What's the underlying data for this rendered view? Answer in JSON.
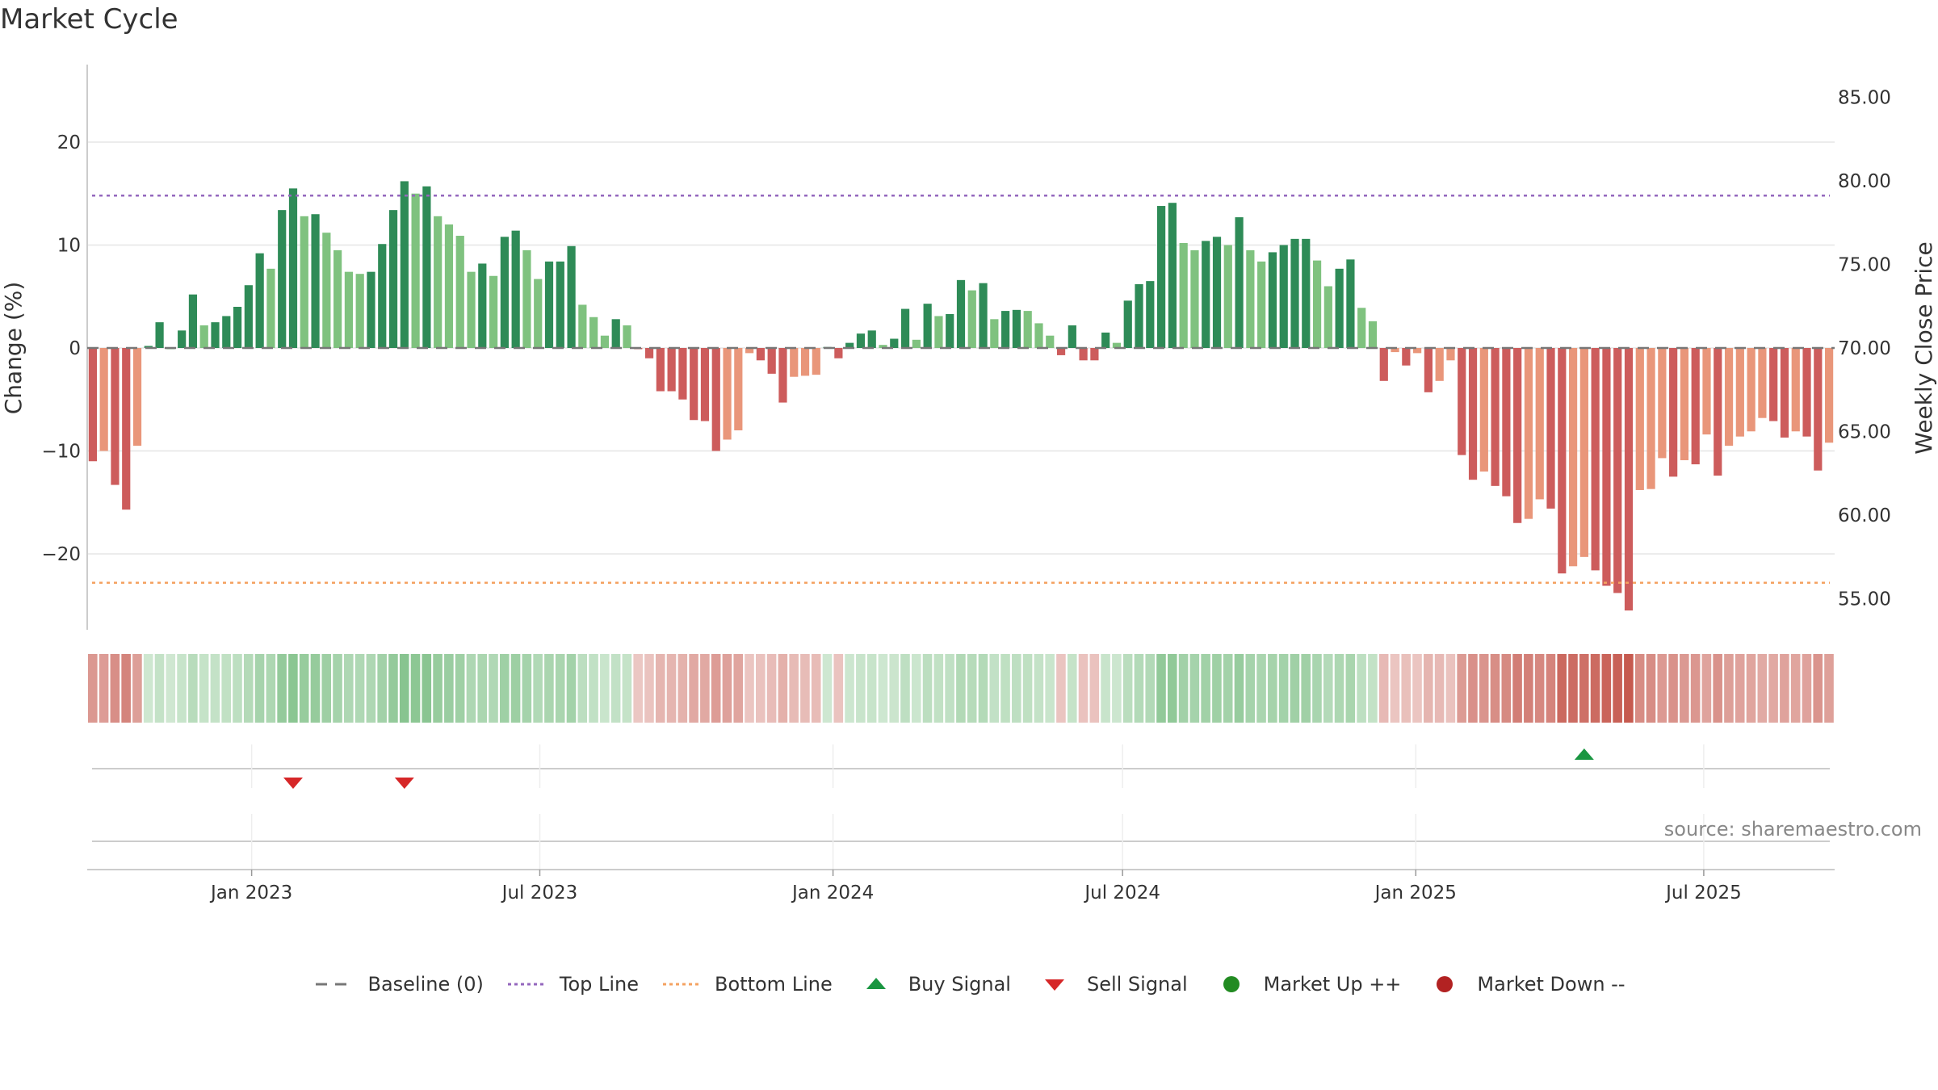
{
  "chart_data": {
    "type": "bar",
    "title": "Market Cycle",
    "ylabel": "Change (%)",
    "y2label": "Weekly Close Price",
    "ylim": [
      -27.5,
      27.5
    ],
    "y2lim": [
      53,
      86
    ],
    "yticks": [
      20,
      10,
      0,
      -10,
      -20
    ],
    "ytick_labels": [
      "20",
      "10",
      "0",
      "−10",
      "−20"
    ],
    "y2ticks": [
      85,
      80,
      75,
      70,
      65,
      60,
      55
    ],
    "y2tick_labels": [
      "85.00",
      "80.00",
      "75.00",
      "70.00",
      "65.00",
      "60.00",
      "55.00"
    ],
    "xticks": [
      "Jan 2023",
      "Jul 2023",
      "Jan 2024",
      "Jul 2024",
      "Jan 2025",
      "Jul 2025"
    ],
    "top_line": 14.8,
    "bottom_line": -22.8,
    "grid": true,
    "legend_position": "bottom-center",
    "values": [
      -11,
      -10,
      -13.3,
      -15.7,
      -9.5,
      0.2,
      2.5,
      0,
      1.7,
      5.2,
      2.2,
      2.5,
      3.1,
      4,
      6.1,
      9.2,
      7.7,
      13.4,
      15.5,
      12.8,
      13,
      11.2,
      9.5,
      7.4,
      7.2,
      7.4,
      10.1,
      13.4,
      16.2,
      15,
      15.7,
      12.8,
      12,
      10.9,
      7.4,
      8.2,
      7,
      10.8,
      11.4,
      9.5,
      6.7,
      8.4,
      8.4,
      9.9,
      4.2,
      3,
      1.2,
      2.8,
      2.2,
      -0.1,
      -1,
      -4.2,
      -4.2,
      -5,
      -7,
      -7.1,
      -10,
      -8.9,
      -8,
      -0.5,
      -1.2,
      -2.5,
      -5.3,
      -2.8,
      -2.7,
      -2.6,
      0.1,
      -1,
      0.5,
      1.4,
      1.7,
      0.3,
      0.9,
      3.8,
      0.8,
      4.3,
      3.1,
      3.3,
      6.6,
      5.6,
      6.3,
      2.8,
      3.6,
      3.7,
      3.6,
      2.4,
      1.2,
      -0.7,
      2.2,
      -1.2,
      -1.2,
      1.5,
      0.5,
      4.6,
      6.2,
      6.5,
      13.8,
      14.1,
      10.2,
      9.5,
      10.4,
      10.8,
      10,
      12.7,
      9.5,
      8.4,
      9.3,
      10,
      10.6,
      10.6,
      8.5,
      6,
      7.7,
      8.6,
      3.9,
      2.6,
      -3.2,
      -0.4,
      -1.7,
      -0.5,
      -4.3,
      -3.2,
      -1.2,
      -10.4,
      -12.8,
      -12,
      -13.4,
      -14.4,
      -17,
      -16.6,
      -14.7,
      -15.6,
      -21.9,
      -21.2,
      -20.3,
      -21.6,
      -23.1,
      -23.8,
      -25.5,
      -13.8,
      -13.7,
      -10.7,
      -12.5,
      -10.9,
      -11.3,
      -8.4,
      -12.4,
      -9.5,
      -8.6,
      -8.1,
      -6.8,
      -7.1,
      -8.7,
      -8.1,
      -8.6,
      -11.9,
      -9.2
    ],
    "buy_signals": [
      [
        134,
        "Buy Signal"
      ]
    ],
    "sell_signals": [
      [
        18,
        "Sell Signal"
      ],
      [
        28,
        "Sell Signal"
      ]
    ],
    "series_names": [
      "Baseline (0)",
      "Top Line",
      "Bottom Line",
      "Buy Signal",
      "Sell Signal",
      "Market Up ++",
      "Market Down --"
    ]
  },
  "legend": [
    {
      "label": "Baseline (0)",
      "kind": "dash",
      "color": "#777777"
    },
    {
      "label": "Top Line",
      "kind": "dot",
      "color": "#9467bd"
    },
    {
      "label": "Bottom Line",
      "kind": "dot",
      "color": "#f4a261"
    },
    {
      "label": "Buy Signal",
      "kind": "tri-up",
      "color": "#1a9641"
    },
    {
      "label": "Sell Signal",
      "kind": "tri-down",
      "color": "#d62728"
    },
    {
      "label": "Market Up ++",
      "kind": "circle",
      "color": "#228b22"
    },
    {
      "label": "Market Down --",
      "kind": "circle",
      "color": "#b22222"
    }
  ],
  "colors": {
    "strong_up": "#2e8b57",
    "weak_up": "#7fc27f",
    "strong_down": "#cd5c5c",
    "weak_down": "#e9967a",
    "top_line": "#9467bd",
    "bottom_line": "#f4a261",
    "grid": "#e6e6e6",
    "axis": "#cccccc"
  },
  "source": "source: sharemaestro.com"
}
